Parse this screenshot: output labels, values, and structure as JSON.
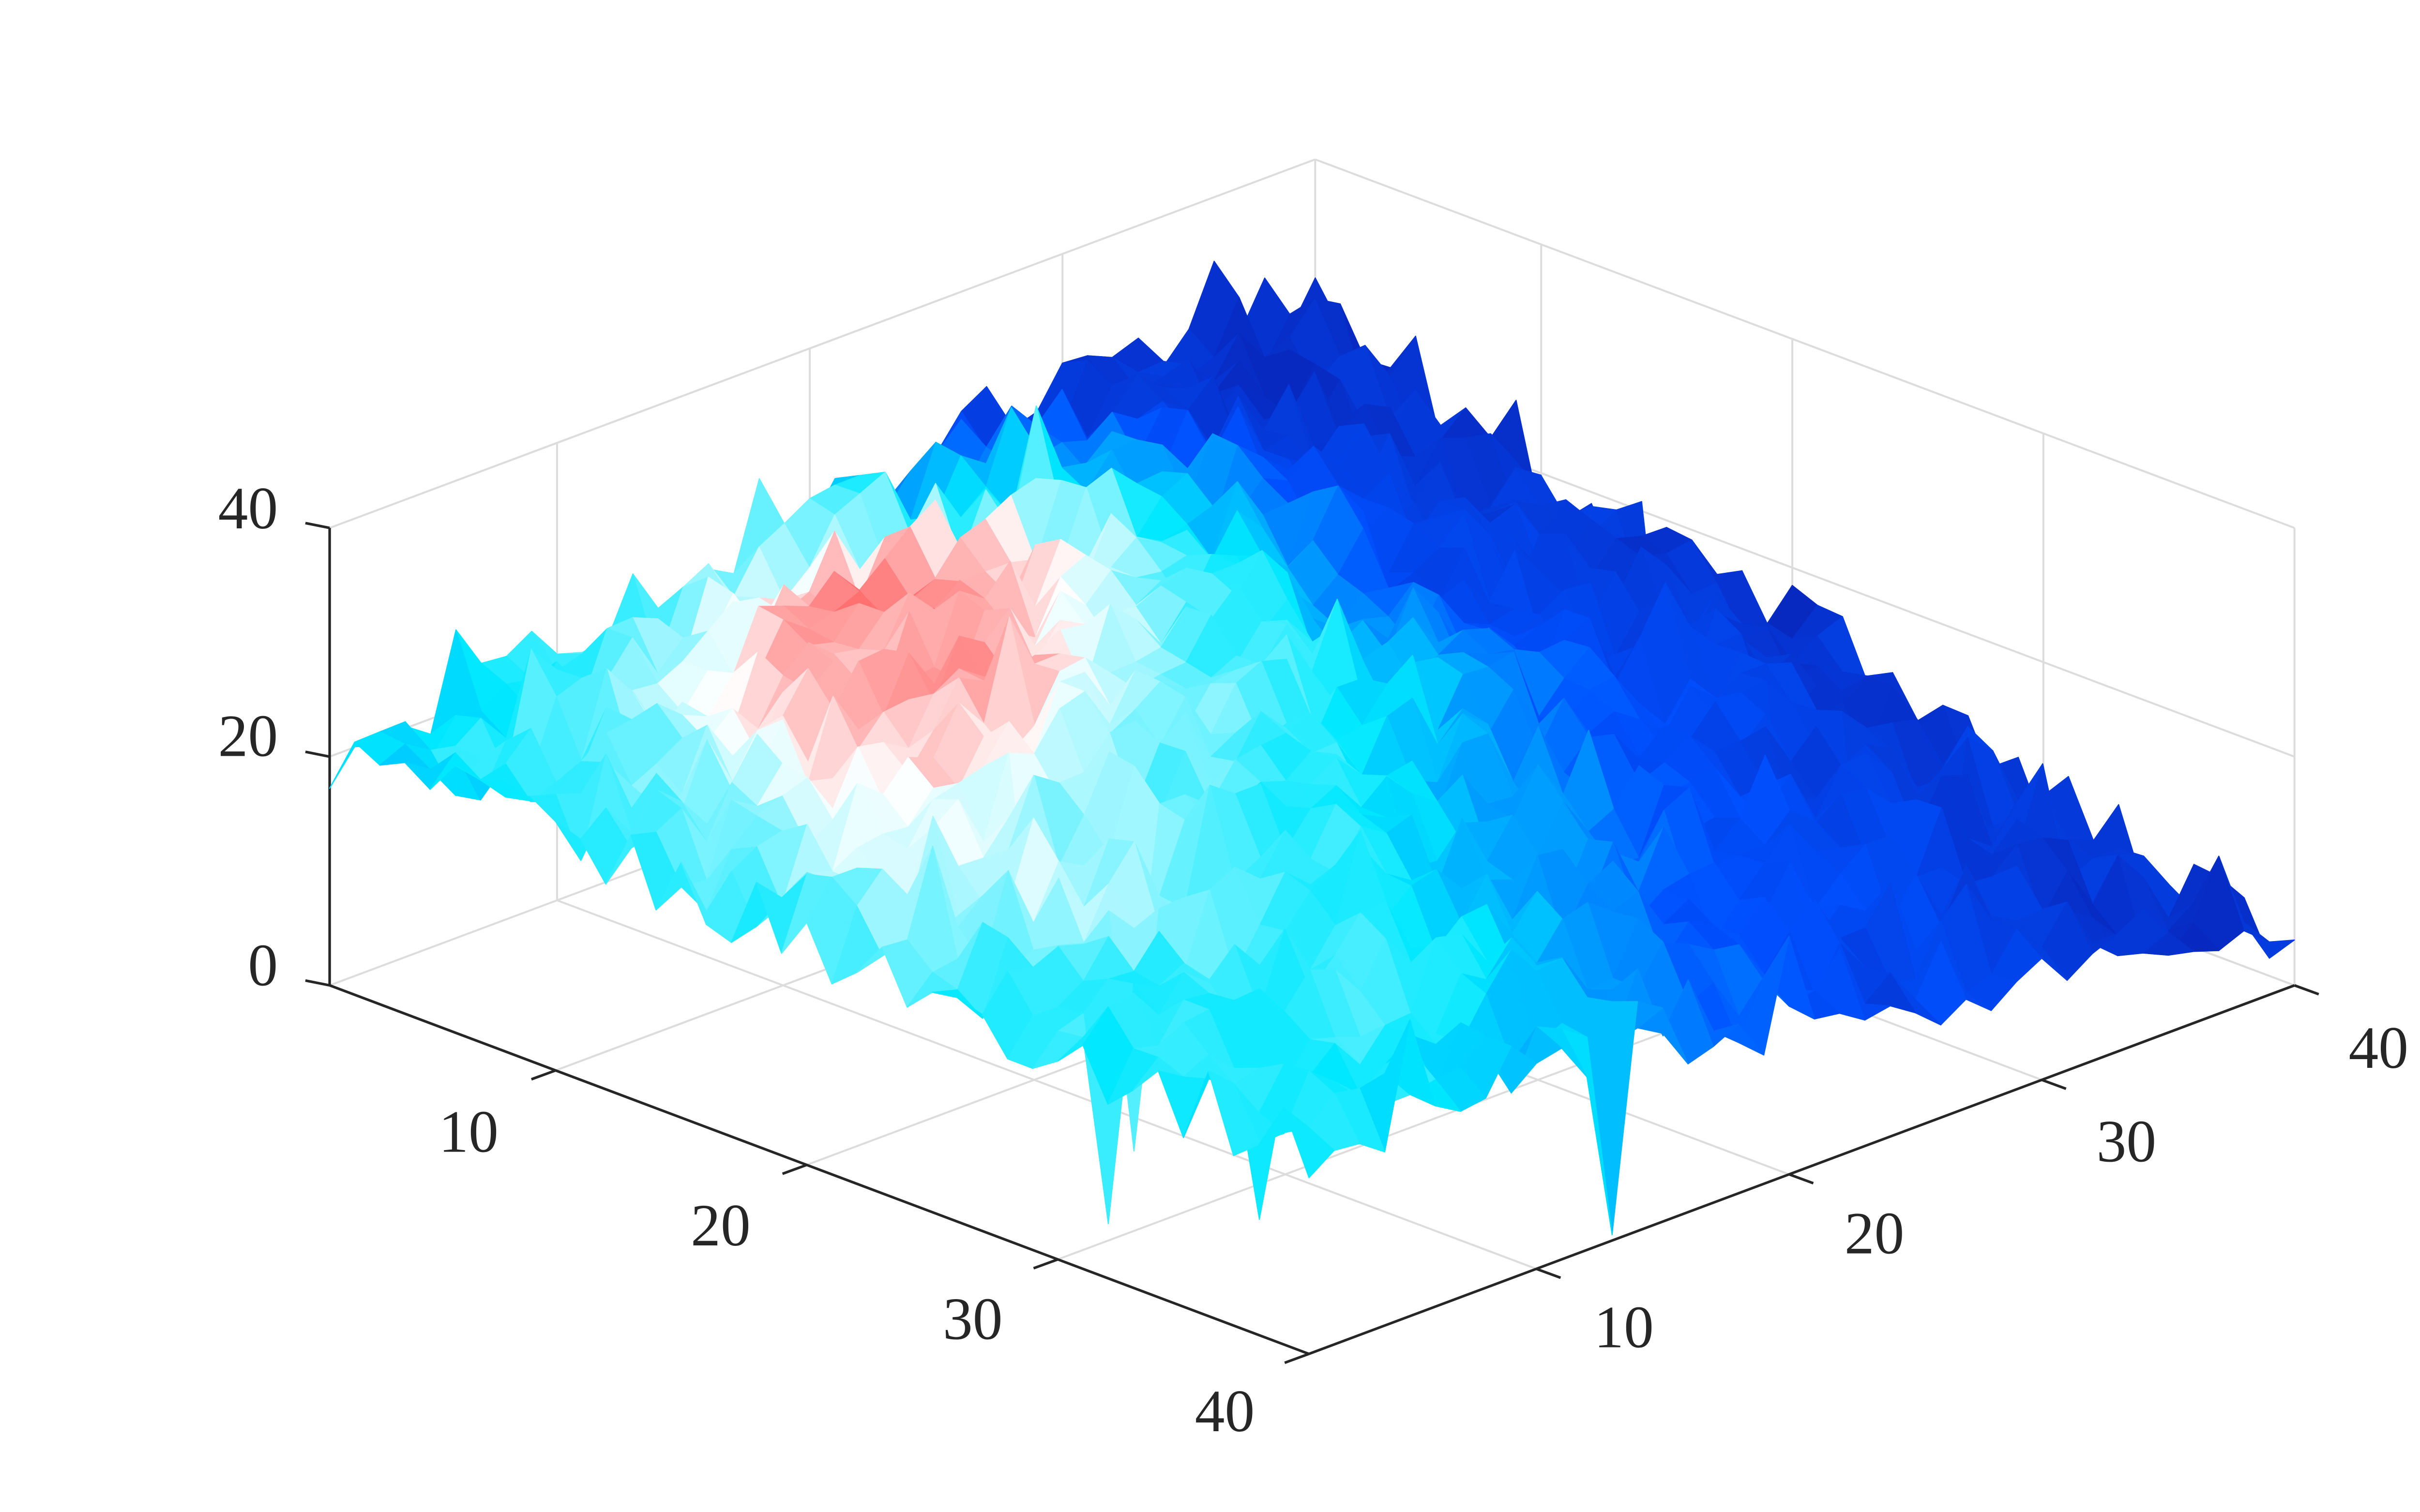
{
  "chart_data": {
    "type": "surface",
    "title": "",
    "xlabel": "",
    "ylabel": "",
    "zlabel": "",
    "x_range": [
      1,
      40
    ],
    "y_range": [
      1,
      40
    ],
    "zlim": [
      0,
      40
    ],
    "grid": true,
    "x_ticks": [
      "10",
      "20",
      "30",
      "40"
    ],
    "x_tick_values": [
      10,
      20,
      30,
      40
    ],
    "y_ticks": [
      "10",
      "20",
      "30",
      "40"
    ],
    "y_tick_values": [
      10,
      20,
      30,
      40
    ],
    "z_ticks": [
      "0",
      "20",
      "40"
    ],
    "z_tick_values": [
      0,
      20,
      40
    ],
    "grid_size": 40,
    "coarse_node_positions": [
      1,
      6.57,
      12.14,
      17.71,
      23.29,
      28.86,
      34.43,
      40
    ],
    "coarse_height_matrix_rows_x_cols_y": [
      [
        20,
        21,
        22,
        24,
        27,
        30,
        30,
        28
      ],
      [
        20,
        22,
        24,
        26,
        30,
        32,
        28,
        22
      ],
      [
        20,
        23,
        28,
        30,
        32,
        30,
        24,
        18
      ],
      [
        20,
        24,
        30,
        32,
        28,
        26,
        22,
        16
      ],
      [
        19,
        24,
        30,
        28,
        26,
        24,
        20,
        14
      ],
      [
        19,
        22,
        26,
        24,
        22,
        20,
        16,
        10
      ],
      [
        18,
        20,
        22,
        20,
        18,
        16,
        12,
        6
      ],
      [
        18,
        18,
        16,
        14,
        12,
        10,
        8,
        4
      ]
    ],
    "coarse_color_matrix_rows_x_cols_y": [
      [
        0.5,
        0.5,
        0.55,
        0.6,
        0.3,
        0.1,
        0.1,
        0.1
      ],
      [
        0.5,
        0.6,
        0.8,
        0.95,
        0.5,
        0.15,
        0.1,
        0.1
      ],
      [
        0.5,
        0.7,
        0.9,
        0.85,
        0.55,
        0.2,
        0.15,
        0.1
      ],
      [
        0.55,
        0.75,
        0.8,
        0.6,
        0.45,
        0.2,
        0.15,
        0.1
      ],
      [
        0.55,
        0.7,
        0.6,
        0.55,
        0.4,
        0.25,
        0.15,
        0.1
      ],
      [
        0.5,
        0.6,
        0.55,
        0.45,
        0.3,
        0.2,
        0.15,
        0.1
      ],
      [
        0.5,
        0.55,
        0.5,
        0.35,
        0.25,
        0.2,
        0.12,
        0.1
      ],
      [
        0.5,
        0.5,
        0.45,
        0.3,
        0.2,
        0.15,
        0.1,
        0.1
      ]
    ],
    "noise_amplitude": 3.5,
    "colormap": [
      "#0a1fb0",
      "#0050ff",
      "#00e8ff",
      "#ffffff",
      "#ff1010"
    ],
    "view": "3d, azimuth -45, elevation ~30"
  }
}
